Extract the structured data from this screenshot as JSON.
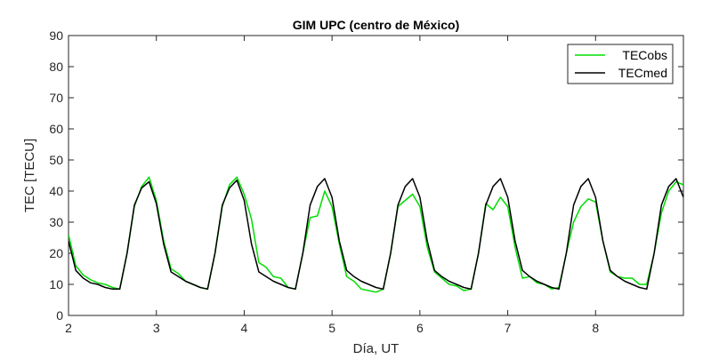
{
  "chart_data": {
    "type": "line",
    "title": "GIM UPC (centro de México)",
    "xlabel": "Día, UT",
    "ylabel": "TEC [TECU]",
    "xlim": [
      2,
      9
    ],
    "ylim": [
      0,
      90
    ],
    "xticks": [
      2,
      3,
      4,
      5,
      6,
      7,
      8
    ],
    "yticks": [
      0,
      10,
      20,
      30,
      40,
      50,
      60,
      70,
      80,
      90
    ],
    "grid": false,
    "legend_position": "top-right",
    "series": [
      {
        "name": "TECobs",
        "color": "#00dd00",
        "x": [
          2.0,
          2.083,
          2.167,
          2.25,
          2.333,
          2.417,
          2.5,
          2.583,
          2.667,
          2.75,
          2.833,
          2.917,
          3.0,
          3.083,
          3.167,
          3.25,
          3.333,
          3.417,
          3.5,
          3.583,
          3.667,
          3.75,
          3.833,
          3.917,
          4.0,
          4.083,
          4.167,
          4.25,
          4.333,
          4.417,
          4.5,
          4.583,
          4.667,
          4.75,
          4.833,
          4.917,
          5.0,
          5.083,
          5.167,
          5.25,
          5.333,
          5.417,
          5.5,
          5.583,
          5.667,
          5.75,
          5.833,
          5.917,
          6.0,
          6.083,
          6.167,
          6.25,
          6.333,
          6.417,
          6.5,
          6.583,
          6.667,
          6.75,
          6.833,
          6.917,
          7.0,
          7.083,
          7.167,
          7.25,
          7.333,
          7.417,
          7.5,
          7.583,
          7.667,
          7.75,
          7.833,
          7.917,
          8.0,
          8.083,
          8.167,
          8.25,
          8.333,
          8.417,
          8.5,
          8.583,
          8.667,
          8.75,
          8.833,
          8.917,
          9.0
        ],
        "y": [
          26,
          16,
          13,
          11.5,
          10.5,
          10,
          9,
          8.5,
          20,
          35,
          41.5,
          44.5,
          37,
          24,
          15,
          13.5,
          11,
          10,
          9,
          8.5,
          20,
          35,
          42,
          44.5,
          39,
          31,
          17,
          15.5,
          12.5,
          12,
          9,
          8.5,
          20,
          31.5,
          32,
          40,
          35,
          23,
          12.5,
          11,
          8.5,
          8,
          7.5,
          8.5,
          20,
          35,
          37,
          39,
          35,
          22,
          14,
          12,
          10,
          9.5,
          8,
          8.5,
          20,
          36,
          34,
          38,
          35,
          22,
          12,
          12.5,
          10.5,
          10,
          8.5,
          9,
          20,
          30,
          35,
          37.5,
          36.5,
          24,
          14,
          12.5,
          12,
          12,
          10,
          10,
          20,
          33,
          40,
          43,
          42
        ]
      },
      {
        "name": "TECmed",
        "color": "#000000",
        "x": [
          2.0,
          2.083,
          2.167,
          2.25,
          2.333,
          2.417,
          2.5,
          2.583,
          2.667,
          2.75,
          2.833,
          2.917,
          3.0,
          3.083,
          3.167,
          3.25,
          3.333,
          3.417,
          3.5,
          3.583,
          3.667,
          3.75,
          3.833,
          3.917,
          4.0,
          4.083,
          4.167,
          4.25,
          4.333,
          4.417,
          4.5,
          4.583,
          4.667,
          4.75,
          4.833,
          4.917,
          5.0,
          5.083,
          5.167,
          5.25,
          5.333,
          5.417,
          5.5,
          5.583,
          5.667,
          5.75,
          5.833,
          5.917,
          6.0,
          6.083,
          6.167,
          6.25,
          6.333,
          6.417,
          6.5,
          6.583,
          6.667,
          6.75,
          6.833,
          6.917,
          7.0,
          7.083,
          7.167,
          7.25,
          7.333,
          7.417,
          7.5,
          7.583,
          7.667,
          7.75,
          7.833,
          7.917,
          8.0,
          8.083,
          8.167,
          8.25,
          8.333,
          8.417,
          8.5,
          8.583,
          8.667,
          8.75,
          8.833,
          8.917,
          9.0
        ],
        "y": [
          24,
          14.5,
          12,
          10.5,
          10,
          9,
          8.5,
          8.5,
          20,
          35.5,
          41,
          43,
          36,
          23,
          14,
          12.5,
          11,
          10,
          9,
          8.5,
          20,
          35.5,
          41,
          43.5,
          37,
          23,
          14,
          12.5,
          11,
          10,
          9,
          8.5,
          20,
          35.5,
          41.5,
          44,
          38,
          24,
          14.5,
          12.5,
          11,
          10,
          9,
          8.5,
          20,
          35.5,
          41.5,
          44,
          38,
          24,
          14.5,
          12.5,
          11,
          10,
          9,
          8.5,
          20,
          35.5,
          41.5,
          44,
          38,
          24,
          14.5,
          12.5,
          11,
          10,
          9,
          8.5,
          20,
          35.5,
          41.5,
          44,
          38,
          24,
          14.5,
          12.5,
          11,
          10,
          9,
          8.5,
          20,
          35.5,
          41.5,
          44,
          38
        ]
      }
    ]
  }
}
